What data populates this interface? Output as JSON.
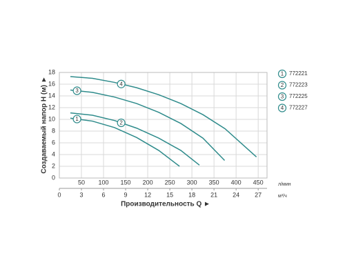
{
  "chart_data": {
    "type": "line",
    "xlabel": "Производительность Q ►",
    "ylabel": "Создаваемый напор H (м) ►",
    "xunit": "л/мин",
    "x2unit": "м³/ч",
    "xlim": [
      0,
      470
    ],
    "xticks": [
      50,
      100,
      150,
      200,
      250,
      300,
      350,
      400,
      450
    ],
    "x2lim": [
      0,
      28.2
    ],
    "x2ticks": [
      0,
      3,
      6,
      9,
      12,
      15,
      18,
      21,
      24,
      27
    ],
    "ylim": [
      0,
      18
    ],
    "yticks": [
      0,
      2,
      4,
      6,
      8,
      10,
      12,
      14,
      16,
      18
    ],
    "grid": true,
    "series": [
      {
        "label": "1",
        "name": "772221",
        "color": "#2e8b8b",
        "x": [
          25,
          75,
          125,
          175,
          225,
          272
        ],
        "values": [
          10.2,
          9.7,
          8.6,
          6.9,
          4.7,
          2.0
        ]
      },
      {
        "label": "2",
        "name": "772223",
        "color": "#2e8b8b",
        "x": [
          25,
          75,
          125,
          175,
          225,
          275,
          317
        ],
        "values": [
          11.1,
          10.7,
          9.8,
          8.5,
          6.8,
          4.7,
          2.2
        ]
      },
      {
        "label": "3",
        "name": "772225",
        "color": "#2e8b8b",
        "x": [
          25,
          75,
          125,
          175,
          225,
          275,
          325,
          374
        ],
        "values": [
          15.0,
          14.6,
          13.8,
          12.7,
          11.2,
          9.3,
          6.8,
          3.0
        ]
      },
      {
        "label": "4",
        "name": "772227",
        "color": "#2e8b8b",
        "x": [
          25,
          75,
          125,
          175,
          225,
          275,
          325,
          375,
          446
        ],
        "values": [
          17.3,
          17.0,
          16.3,
          15.4,
          14.2,
          12.7,
          10.8,
          8.4,
          3.6
        ]
      }
    ]
  }
}
